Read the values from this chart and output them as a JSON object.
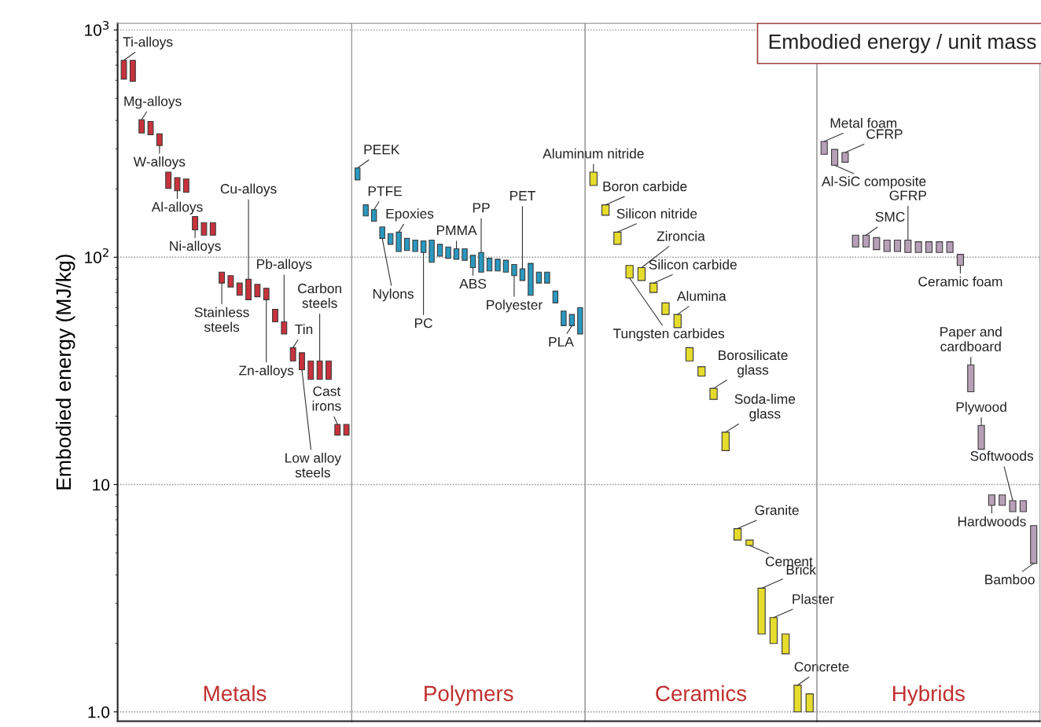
{
  "chart_data": [
    {
      "type": "bar",
      "ylabel": "Embodied energy (MJ/kg)",
      "log": true,
      "grid": "y",
      "tick_labels": "y",
      "color": "#c8323c",
      "ylim": [
        0.91,
        1070
      ],
      "yticks": [
        {
          "value": 1,
          "label": "1.0"
        },
        10,
        {
          "value": 100,
          "label": "10$^{2}$"
        },
        {
          "value": 1000,
          "label": "10$^{3}$"
        }
      ],
      "categories": [
        null,
        null,
        null,
        null,
        null,
        null,
        null,
        null,
        null,
        null,
        null,
        null,
        null,
        null,
        null,
        null,
        null,
        null,
        null,
        null,
        null,
        null,
        null,
        null,
        null,
        null
      ],
      "base": [
        608,
        594,
        352,
        346,
        310,
        201,
        196,
        193,
        132,
        125,
        125,
        77,
        74,
        68,
        65,
        67,
        65,
        52,
        46,
        35,
        32,
        29,
        29,
        29,
        16.5,
        16.5
      ],
      "values": [
        127,
        141,
        51,
        50,
        39,
        36,
        28,
        28,
        19,
        17,
        17,
        9,
        9,
        9,
        15,
        9,
        8,
        7,
        6,
        5,
        6,
        6,
        6,
        6,
        1.9,
        1.9
      ],
      "annotations": [
        "Metals",
        "Ti-alloys",
        "Mg-alloys",
        "W-alloys",
        "Al-alloys",
        "Ni-alloys",
        "Stainless\nsteels",
        "Cu-alloys",
        "Zn-alloys",
        "Pb-alloys",
        "Tin",
        "Low alloy\nsteels",
        "Carbon\nsteels",
        "Cast\nirons"
      ]
    },
    {
      "type": "bar",
      "log": true,
      "grid": "y",
      "tick_labels": false,
      "color": "#2a98c0",
      "ylim": [
        0.91,
        1070
      ],
      "yticks": [
        1,
        10,
        100,
        1000
      ],
      "categories": [
        null,
        null,
        null,
        null,
        null,
        null,
        null,
        null,
        null,
        null,
        null,
        null,
        null,
        null,
        null,
        null,
        null,
        null,
        null,
        null,
        null,
        null,
        null,
        null,
        null,
        null,
        null,
        null
      ],
      "base": [
        219,
        152,
        144,
        121,
        114,
        106,
        107,
        106,
        105,
        95,
        101,
        99,
        98,
        97,
        90,
        86,
        87,
        87,
        86,
        83,
        79,
        68,
        77,
        77,
        63,
        50,
        50,
        46
      ],
      "values": [
        28,
        18,
        18,
        15,
        13,
        23,
        14,
        13,
        13,
        24,
        13,
        12,
        11,
        12,
        12,
        19,
        12,
        11,
        11,
        10,
        10,
        26,
        9,
        9,
        8,
        8,
        6,
        14
      ],
      "annotations": [
        "Polymers",
        "PEEK",
        "PTFE",
        "Nylons",
        "Epoxies",
        "PC",
        "PMMA",
        "ABS",
        "PP",
        "Polyester",
        "PET",
        "PLA"
      ]
    },
    {
      "type": "bar",
      "log": true,
      "grid": "y",
      "tick_labels": false,
      "color": "#e6dc2c",
      "ylim": [
        0.91,
        1070
      ],
      "yticks": [
        1,
        10,
        100,
        1000
      ],
      "categories": [
        null,
        null,
        null,
        null,
        null,
        null,
        null,
        null,
        null,
        null,
        null,
        null,
        null,
        null,
        null,
        null,
        null,
        null,
        null
      ],
      "base": [
        207,
        153,
        114,
        81,
        79,
        70,
        56,
        49,
        35,
        30,
        23.7,
        14.1,
        5.7,
        5.4,
        2.2,
        2.0,
        1.8,
        1.0,
        1.0
      ],
      "values": [
        30,
        17,
        15,
        11,
        11,
        7,
        7,
        7,
        5,
        3,
        2.8,
        2.9,
        0.7,
        0.3,
        1.3,
        0.6,
        0.4,
        0.31,
        0.2
      ],
      "annotations": [
        "Ceramics",
        "Aluminum nitride",
        "Boron carbide",
        "Silicon nitride",
        "Tungsten carbides",
        "Zironcia",
        "Silicon carbide",
        "Alumina",
        "Borosilicate\nglass",
        "Soda-lime\nglass",
        "Granite",
        "Cement",
        "Brick",
        "Plaster",
        "Concrete"
      ]
    },
    {
      "type": "bar",
      "title": "Embodied energy / unit mass",
      "log": true,
      "grid": "y",
      "tick_labels": false,
      "color": "#b8a0b8",
      "ylim": [
        0.91,
        1070
      ],
      "yticks": [
        1,
        10,
        100,
        1000
      ],
      "categories": [
        null,
        null,
        null,
        null,
        null,
        null,
        null,
        null,
        null,
        null,
        null,
        null,
        null,
        null,
        null,
        null,
        null,
        null,
        null,
        null,
        null
      ],
      "base": [
        284,
        254,
        262,
        111,
        111,
        108,
        106,
        106,
        105,
        105,
        105,
        105,
        105,
        92,
        25.6,
        14.3,
        8.1,
        8.1,
        7.6,
        7.6,
        4.5
      ],
      "values": [
        39,
        44,
        27,
        14,
        14,
        14,
        13,
        13,
        14,
        12,
        12,
        12,
        12,
        11,
        8,
        3.9,
        0.9,
        0.9,
        0.9,
        0.9,
        2.1
      ],
      "annotations": [
        "Hybrids",
        "Metal foam",
        "Al-SiC composite",
        "CFRP",
        "SMC",
        "GFRP",
        "Ceramic foam",
        "Paper and\ncardboard",
        "Plywood",
        "Hardwoods",
        "Softwoods",
        "Bamboo"
      ]
    }
  ]
}
